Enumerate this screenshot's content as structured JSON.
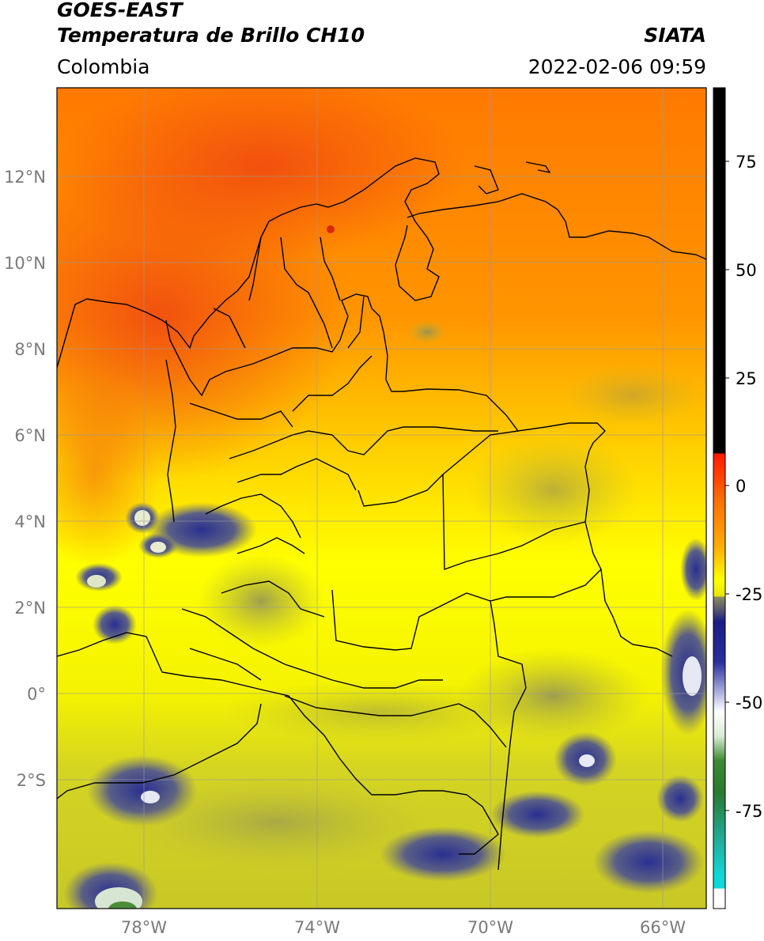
{
  "header": {
    "satellite": "GOES-EAST",
    "product": "Temperatura de Brillo CH10",
    "organization": "SIATA",
    "region": "Colombia",
    "timestamp": "2022-02-06 09:59"
  },
  "map": {
    "lon_range": [
      -80,
      -65
    ],
    "lat_range": [
      -5,
      14
    ],
    "lat_ticks": [
      "12°N",
      "10°N",
      "8°N",
      "6°N",
      "4°N",
      "2°N",
      "0°",
      "2°S"
    ],
    "lon_ticks": [
      "78°W",
      "74°W",
      "70°W",
      "66°W"
    ],
    "gridlines": true
  },
  "colorbar": {
    "ticks": [
      "75",
      "50",
      "25",
      "0",
      "-25",
      "-50",
      "-75"
    ],
    "colors": {
      "black": "#000000",
      "red": "#e8260e",
      "orange": "#ff8c00",
      "yellow": "#ffff00",
      "olive": "#cccc22",
      "navy": "#121a8c",
      "white": "#ffffff",
      "green": "#2f7f28",
      "cyan": "#10d8d8"
    }
  }
}
